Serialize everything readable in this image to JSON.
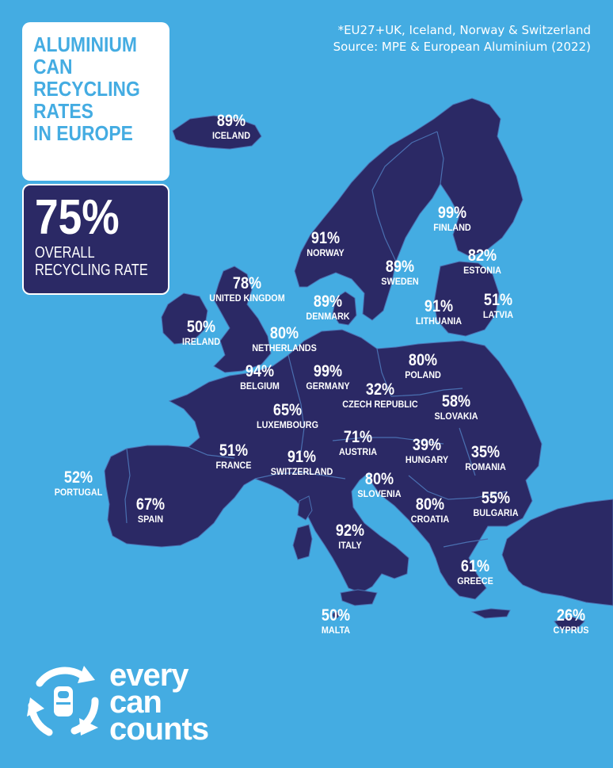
{
  "title": {
    "lines": [
      "ALUMINIUM",
      "CAN",
      "RECYCLING",
      "RATES",
      "IN EUROPE"
    ]
  },
  "overall": {
    "value": "75%",
    "label_lines": [
      "OVERALL",
      "RECYCLING RATE"
    ]
  },
  "note": {
    "lines": [
      "*EU27+UK, Iceland, Norway & Switzerland",
      "Source: MPE & European Aluminium (2022)"
    ]
  },
  "colors": {
    "sea": "#44ace2",
    "land": "#2b2965",
    "border": "#4a6fb0",
    "text": "#ffffff"
  },
  "countries": [
    {
      "name": "ICELAND",
      "value": "89%",
      "rate": 89
    },
    {
      "name": "NORWAY",
      "value": "91%",
      "rate": 91
    },
    {
      "name": "SWEDEN",
      "value": "89%",
      "rate": 89
    },
    {
      "name": "FINLAND",
      "value": "99%",
      "rate": 99
    },
    {
      "name": "ESTONIA",
      "value": "82%",
      "rate": 82
    },
    {
      "name": "LATVIA",
      "value": "51%",
      "rate": 51
    },
    {
      "name": "LITHUANIA",
      "value": "91%",
      "rate": 91
    },
    {
      "name": "DENMARK",
      "value": "89%",
      "rate": 89
    },
    {
      "name": "UNITED KINGDOM",
      "value": "78%",
      "rate": 78
    },
    {
      "name": "IRELAND",
      "value": "50%",
      "rate": 50
    },
    {
      "name": "NETHERLANDS",
      "value": "80%",
      "rate": 80
    },
    {
      "name": "BELGIUM",
      "value": "94%",
      "rate": 94
    },
    {
      "name": "GERMANY",
      "value": "99%",
      "rate": 99
    },
    {
      "name": "POLAND",
      "value": "80%",
      "rate": 80
    },
    {
      "name": "CZECH REPUBLIC",
      "value": "32%",
      "rate": 32
    },
    {
      "name": "SLOVAKIA",
      "value": "58%",
      "rate": 58
    },
    {
      "name": "LUXEMBOURG",
      "value": "65%",
      "rate": 65
    },
    {
      "name": "AUSTRIA",
      "value": "71%",
      "rate": 71
    },
    {
      "name": "HUNGARY",
      "value": "39%",
      "rate": 39
    },
    {
      "name": "ROMANIA",
      "value": "35%",
      "rate": 35
    },
    {
      "name": "FRANCE",
      "value": "51%",
      "rate": 51
    },
    {
      "name": "SWITZERLAND",
      "value": "91%",
      "rate": 91
    },
    {
      "name": "SLOVENIA",
      "value": "80%",
      "rate": 80
    },
    {
      "name": "CROATIA",
      "value": "80%",
      "rate": 80
    },
    {
      "name": "BULGARIA",
      "value": "55%",
      "rate": 55
    },
    {
      "name": "PORTUGAL",
      "value": "52%",
      "rate": 52
    },
    {
      "name": "SPAIN",
      "value": "67%",
      "rate": 67
    },
    {
      "name": "ITALY",
      "value": "92%",
      "rate": 92
    },
    {
      "name": "GREECE",
      "value": "61%",
      "rate": 61
    },
    {
      "name": "MALTA",
      "value": "50%",
      "rate": 50
    },
    {
      "name": "CYPRUS",
      "value": "26%",
      "rate": 26
    }
  ],
  "logo": {
    "words": [
      "every",
      "can",
      "counts"
    ],
    "icon": "recycle-can-icon"
  }
}
